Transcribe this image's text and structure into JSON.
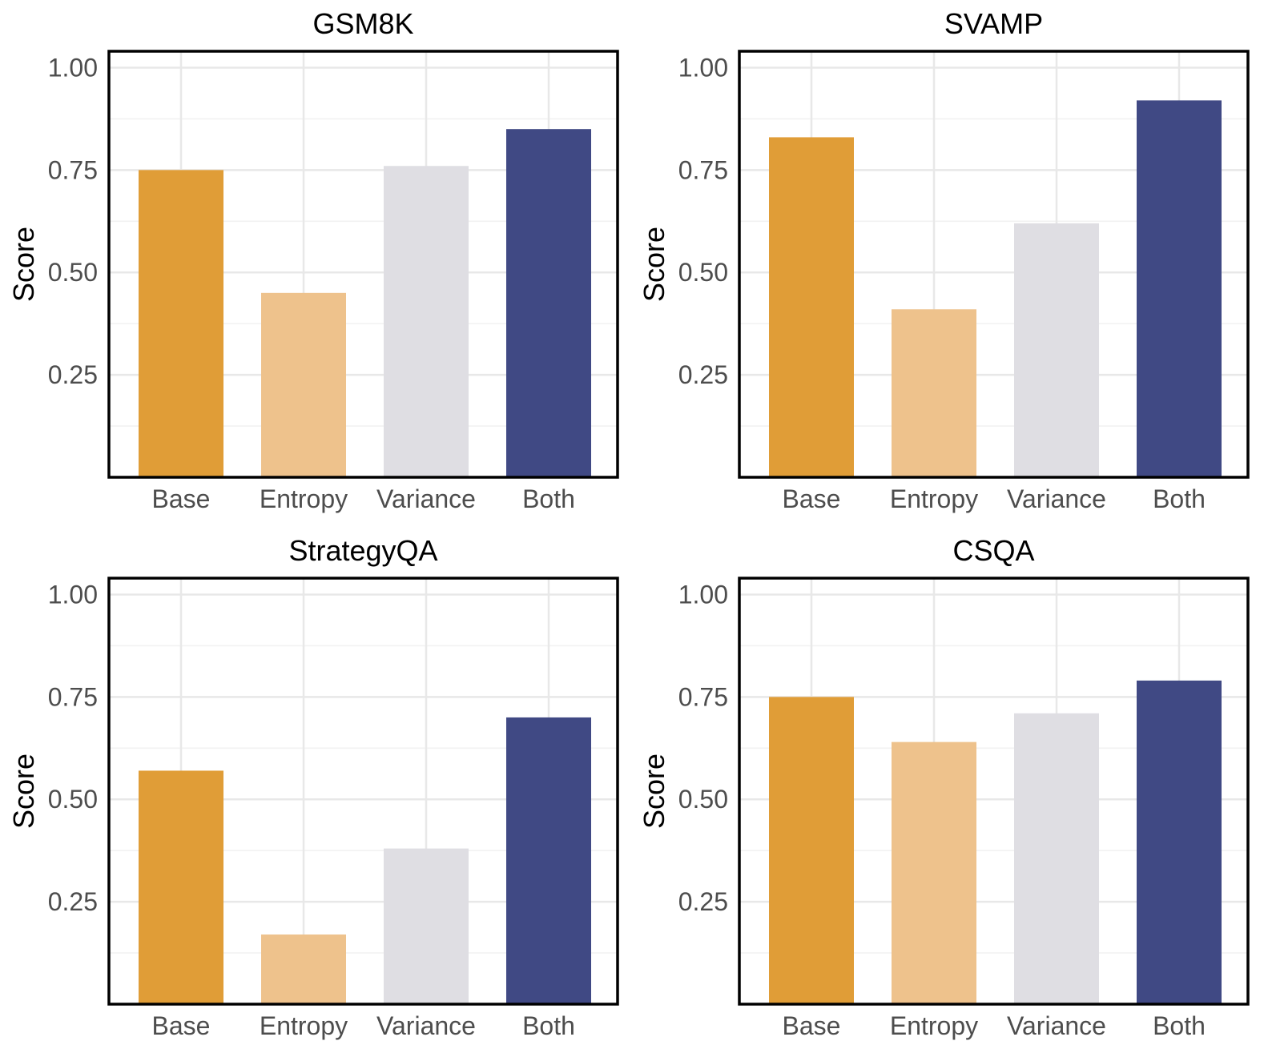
{
  "chart_data": [
    {
      "type": "bar",
      "title": "GSM8K",
      "xlabel": "",
      "ylabel": "Score",
      "ylim": [
        0,
        1.04
      ],
      "yticks": [
        "0.25",
        "0.50",
        "0.75",
        "1.00"
      ],
      "categories": [
        "Base",
        "Entropy",
        "Variance",
        "Both"
      ],
      "values": [
        0.75,
        0.45,
        0.76,
        0.85
      ],
      "colors": [
        "#E09D37",
        "#EEC28C",
        "#DFDEE3",
        "#404984"
      ],
      "grid": true
    },
    {
      "type": "bar",
      "title": "SVAMP",
      "xlabel": "",
      "ylabel": "Score",
      "ylim": [
        0,
        1.04
      ],
      "yticks": [
        "0.25",
        "0.50",
        "0.75",
        "1.00"
      ],
      "categories": [
        "Base",
        "Entropy",
        "Variance",
        "Both"
      ],
      "values": [
        0.83,
        0.41,
        0.62,
        0.92
      ],
      "colors": [
        "#E09D37",
        "#EEC28C",
        "#DFDEE3",
        "#404984"
      ],
      "grid": true
    },
    {
      "type": "bar",
      "title": "StrategyQA",
      "xlabel": "",
      "ylabel": "Score",
      "ylim": [
        0,
        1.04
      ],
      "yticks": [
        "0.25",
        "0.50",
        "0.75",
        "1.00"
      ],
      "categories": [
        "Base",
        "Entropy",
        "Variance",
        "Both"
      ],
      "values": [
        0.57,
        0.17,
        0.38,
        0.7
      ],
      "colors": [
        "#E09D37",
        "#EEC28C",
        "#DFDEE3",
        "#404984"
      ],
      "grid": true
    },
    {
      "type": "bar",
      "title": "CSQA",
      "xlabel": "",
      "ylabel": "Score",
      "ylim": [
        0,
        1.04
      ],
      "yticks": [
        "0.25",
        "0.50",
        "0.75",
        "1.00"
      ],
      "categories": [
        "Base",
        "Entropy",
        "Variance",
        "Both"
      ],
      "values": [
        0.75,
        0.64,
        0.71,
        0.79
      ],
      "colors": [
        "#E09D37",
        "#EEC28C",
        "#DFDEE3",
        "#404984"
      ],
      "grid": true
    }
  ]
}
